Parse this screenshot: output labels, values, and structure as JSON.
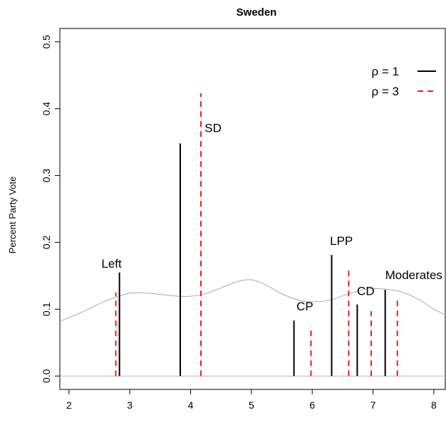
{
  "chart_data": {
    "type": "line",
    "title": "Sweden",
    "xlabel": "",
    "ylabel": "Percent Party Vote",
    "xlim": [
      1.85,
      8.2
    ],
    "ylim": [
      -0.02,
      0.52
    ],
    "x_ticks": [
      "2",
      "3",
      "4",
      "5",
      "6",
      "7",
      "8"
    ],
    "y_ticks": [
      "0.0",
      "0.1",
      "0.2",
      "0.3",
      "0.4",
      "0.5"
    ],
    "grid": false,
    "legend_position": "top-right",
    "series": [
      {
        "name": "ρ = 1",
        "style": "solid",
        "color": "#000000",
        "points": [
          {
            "x": 2.83,
            "y": 0.155
          },
          {
            "x": 3.83,
            "y": 0.348
          },
          {
            "x": 5.7,
            "y": 0.083
          },
          {
            "x": 6.32,
            "y": 0.181
          },
          {
            "x": 6.74,
            "y": 0.107
          },
          {
            "x": 7.2,
            "y": 0.129
          }
        ]
      },
      {
        "name": "ρ = 3",
        "style": "dashed",
        "color": "#e8201e",
        "points": [
          {
            "x": 2.77,
            "y": 0.125
          },
          {
            "x": 4.17,
            "y": 0.423
          },
          {
            "x": 5.98,
            "y": 0.075
          },
          {
            "x": 6.6,
            "y": 0.161
          },
          {
            "x": 6.97,
            "y": 0.097
          },
          {
            "x": 7.4,
            "y": 0.116
          }
        ]
      }
    ],
    "party_labels": [
      {
        "text": "Left",
        "x": 2.7,
        "y": 0.162
      },
      {
        "text": "SD",
        "x": 4.37,
        "y": 0.365
      },
      {
        "text": "CP",
        "x": 5.88,
        "y": 0.098
      },
      {
        "text": "LPP",
        "x": 6.48,
        "y": 0.196
      },
      {
        "text": "CD",
        "x": 6.88,
        "y": 0.121
      },
      {
        "text": "Moderates",
        "x": 7.67,
        "y": 0.145
      }
    ],
    "density_curve": {
      "color": "#aaaaaa",
      "x": [
        1.85,
        2.2,
        2.6,
        3.0,
        3.3,
        3.6,
        3.9,
        4.2,
        4.5,
        4.8,
        5.0,
        5.2,
        5.5,
        5.8,
        6.0,
        6.3,
        6.6,
        6.9,
        7.2,
        7.5,
        7.8,
        8.0,
        8.2
      ],
      "y": [
        0.082,
        0.095,
        0.112,
        0.124,
        0.124,
        0.121,
        0.119,
        0.122,
        0.132,
        0.142,
        0.144,
        0.138,
        0.123,
        0.113,
        0.111,
        0.114,
        0.123,
        0.13,
        0.13,
        0.125,
        0.112,
        0.1,
        0.091
      ]
    },
    "baseline": {
      "y": 0,
      "color": "#bbbbbb"
    }
  }
}
